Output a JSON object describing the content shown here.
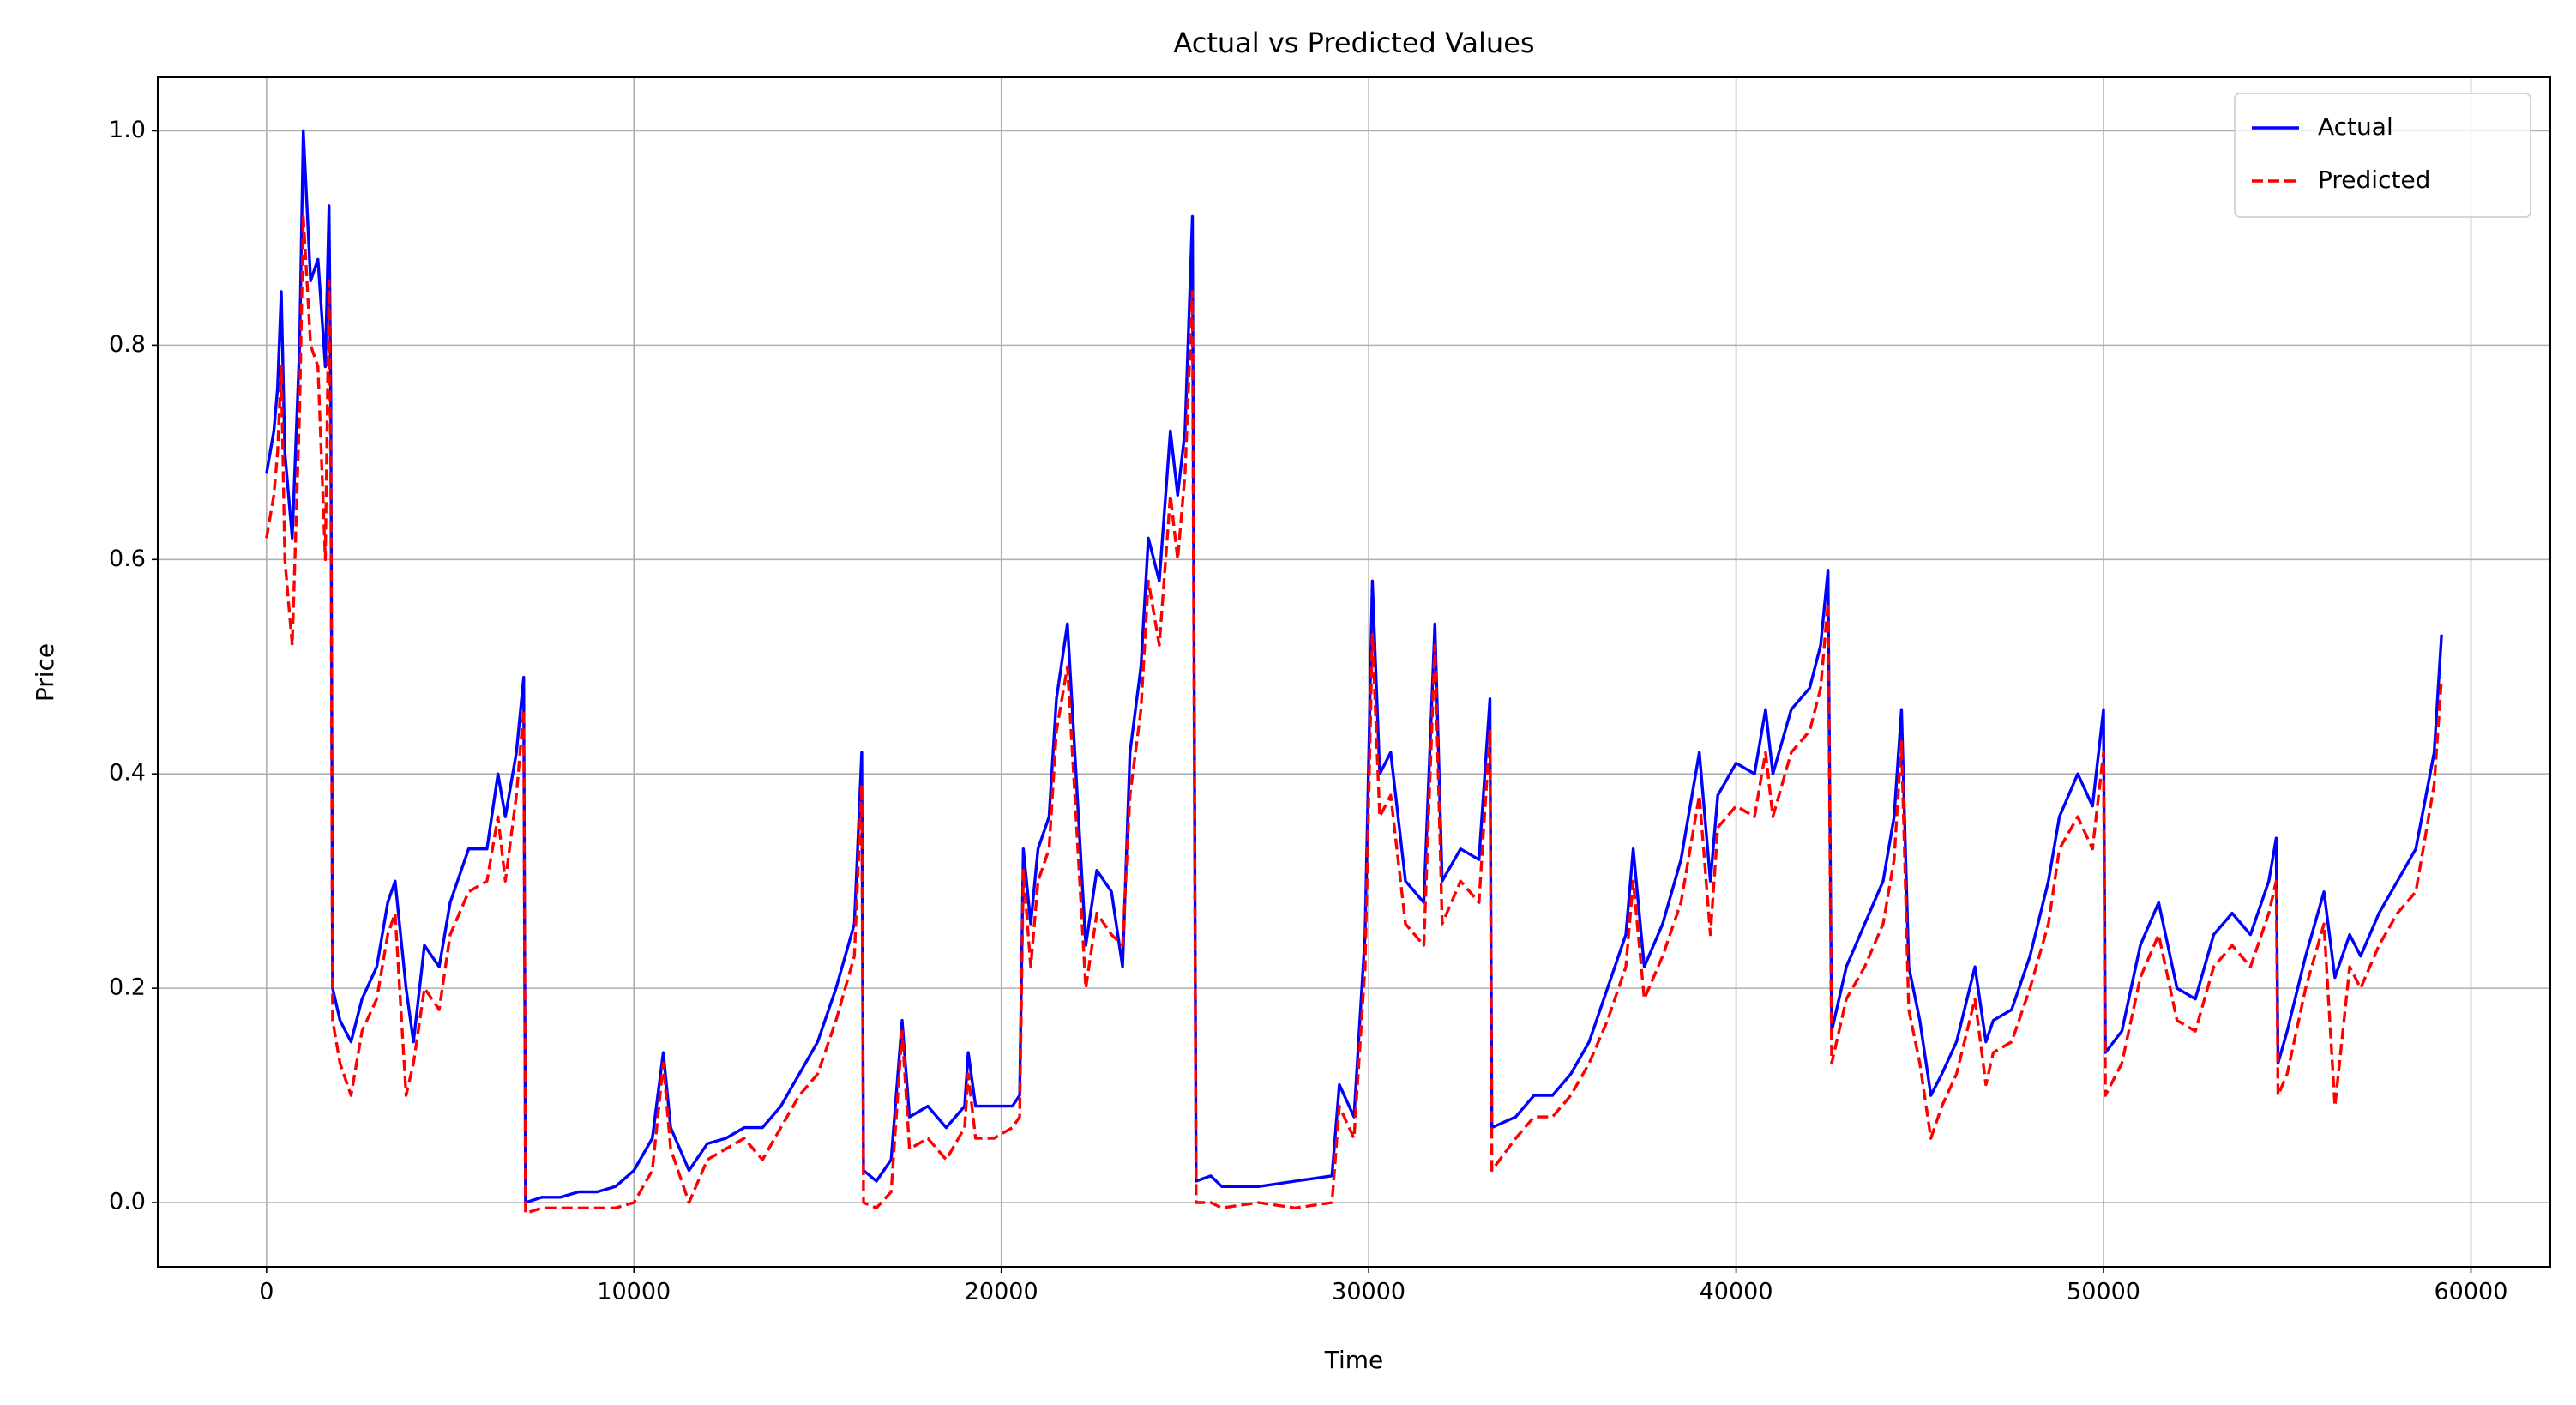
{
  "chart_data": {
    "type": "line",
    "title": "Actual vs Predicted Values",
    "x_label": "Time",
    "y_label": "Price",
    "x": [
      0,
      200,
      300,
      400,
      500,
      700,
      900,
      1000,
      1200,
      1400,
      1600,
      1700,
      1750,
      1800,
      2000,
      2300,
      2600,
      3000,
      3300,
      3500,
      3800,
      4000,
      4300,
      4700,
      5000,
      5500,
      6000,
      6300,
      6500,
      6800,
      7000,
      7050,
      7500,
      8000,
      8500,
      9000,
      9500,
      10000,
      10500,
      10800,
      11000,
      11500,
      12000,
      12500,
      13000,
      13500,
      14000,
      14500,
      15000,
      15500,
      16000,
      16200,
      16250,
      16600,
      17000,
      17300,
      17500,
      18000,
      18500,
      19000,
      19100,
      19300,
      19800,
      20300,
      20500,
      20600,
      20800,
      21000,
      21300,
      21500,
      21800,
      22000,
      22300,
      22600,
      23000,
      23300,
      23500,
      23800,
      24000,
      24300,
      24600,
      24800,
      25000,
      25200,
      25300,
      25700,
      26000,
      27000,
      28000,
      29000,
      29200,
      29600,
      29900,
      30100,
      30300,
      30600,
      31000,
      31500,
      31800,
      32000,
      32500,
      33000,
      33300,
      33350,
      34000,
      34500,
      35000,
      35500,
      36000,
      36500,
      37000,
      37200,
      37500,
      38000,
      38500,
      39000,
      39300,
      39500,
      40000,
      40500,
      40800,
      41000,
      41500,
      42000,
      42300,
      42500,
      42600,
      43000,
      43500,
      44000,
      44300,
      44500,
      44700,
      45000,
      45300,
      45600,
      46000,
      46500,
      46800,
      47000,
      47500,
      48000,
      48500,
      48800,
      49300,
      49700,
      50000,
      50050,
      50500,
      51000,
      51500,
      52000,
      52500,
      53000,
      53500,
      54000,
      54500,
      54700,
      54750,
      55000,
      55500,
      56000,
      56300,
      56700,
      57000,
      57500,
      58000,
      58500,
      59000,
      59200
    ],
    "series": [
      {
        "name": "Actual",
        "color": "#0000ff",
        "dashed": false,
        "values": [
          0.68,
          0.72,
          0.76,
          0.85,
          0.7,
          0.62,
          0.8,
          1.0,
          0.86,
          0.88,
          0.78,
          0.93,
          0.75,
          0.2,
          0.17,
          0.15,
          0.19,
          0.22,
          0.28,
          0.3,
          0.2,
          0.15,
          0.24,
          0.22,
          0.28,
          0.33,
          0.33,
          0.4,
          0.36,
          0.42,
          0.49,
          0.0,
          0.005,
          0.005,
          0.01,
          0.01,
          0.015,
          0.03,
          0.06,
          0.14,
          0.07,
          0.03,
          0.055,
          0.06,
          0.07,
          0.07,
          0.09,
          0.12,
          0.15,
          0.2,
          0.26,
          0.42,
          0.03,
          0.02,
          0.04,
          0.17,
          0.08,
          0.09,
          0.07,
          0.09,
          0.14,
          0.09,
          0.09,
          0.09,
          0.1,
          0.33,
          0.26,
          0.33,
          0.36,
          0.47,
          0.54,
          0.42,
          0.24,
          0.31,
          0.29,
          0.22,
          0.42,
          0.5,
          0.62,
          0.58,
          0.72,
          0.66,
          0.72,
          0.92,
          0.02,
          0.025,
          0.015,
          0.015,
          0.02,
          0.025,
          0.11,
          0.08,
          0.25,
          0.58,
          0.4,
          0.42,
          0.3,
          0.28,
          0.54,
          0.3,
          0.33,
          0.32,
          0.47,
          0.07,
          0.08,
          0.1,
          0.1,
          0.12,
          0.15,
          0.2,
          0.25,
          0.33,
          0.22,
          0.26,
          0.32,
          0.42,
          0.3,
          0.38,
          0.41,
          0.4,
          0.46,
          0.4,
          0.46,
          0.48,
          0.52,
          0.59,
          0.16,
          0.22,
          0.26,
          0.3,
          0.36,
          0.46,
          0.22,
          0.17,
          0.1,
          0.12,
          0.15,
          0.22,
          0.15,
          0.17,
          0.18,
          0.23,
          0.3,
          0.36,
          0.4,
          0.37,
          0.46,
          0.14,
          0.16,
          0.24,
          0.28,
          0.2,
          0.19,
          0.25,
          0.27,
          0.25,
          0.3,
          0.34,
          0.13,
          0.16,
          0.23,
          0.29,
          0.21,
          0.25,
          0.23,
          0.27,
          0.3,
          0.33,
          0.42,
          0.53
        ]
      },
      {
        "name": "Predicted",
        "color": "#ff0000",
        "dashed": true,
        "values": [
          0.62,
          0.66,
          0.7,
          0.78,
          0.6,
          0.52,
          0.74,
          0.92,
          0.8,
          0.78,
          0.6,
          0.86,
          0.68,
          0.17,
          0.13,
          0.1,
          0.16,
          0.19,
          0.25,
          0.27,
          0.1,
          0.13,
          0.2,
          0.18,
          0.25,
          0.29,
          0.3,
          0.36,
          0.3,
          0.38,
          0.46,
          -0.01,
          -0.005,
          -0.005,
          -0.005,
          -0.005,
          -0.005,
          0.0,
          0.03,
          0.13,
          0.05,
          0.0,
          0.04,
          0.05,
          0.06,
          0.04,
          0.07,
          0.1,
          0.12,
          0.17,
          0.23,
          0.39,
          0.0,
          -0.005,
          0.01,
          0.16,
          0.05,
          0.06,
          0.04,
          0.07,
          0.12,
          0.06,
          0.06,
          0.07,
          0.08,
          0.31,
          0.22,
          0.3,
          0.33,
          0.44,
          0.5,
          0.38,
          0.2,
          0.27,
          0.25,
          0.24,
          0.38,
          0.46,
          0.58,
          0.52,
          0.66,
          0.6,
          0.68,
          0.85,
          0.0,
          0.0,
          -0.005,
          0.0,
          -0.005,
          0.0,
          0.09,
          0.06,
          0.22,
          0.53,
          0.36,
          0.38,
          0.26,
          0.24,
          0.52,
          0.26,
          0.3,
          0.28,
          0.44,
          0.03,
          0.06,
          0.08,
          0.08,
          0.1,
          0.13,
          0.17,
          0.22,
          0.3,
          0.19,
          0.23,
          0.28,
          0.38,
          0.25,
          0.35,
          0.37,
          0.36,
          0.42,
          0.36,
          0.42,
          0.44,
          0.48,
          0.56,
          0.13,
          0.19,
          0.22,
          0.26,
          0.32,
          0.43,
          0.18,
          0.13,
          0.06,
          0.09,
          0.12,
          0.19,
          0.11,
          0.14,
          0.15,
          0.2,
          0.26,
          0.33,
          0.36,
          0.33,
          0.42,
          0.1,
          0.13,
          0.21,
          0.25,
          0.17,
          0.16,
          0.22,
          0.24,
          0.22,
          0.27,
          0.3,
          0.1,
          0.12,
          0.2,
          0.26,
          0.09,
          0.22,
          0.2,
          0.24,
          0.27,
          0.29,
          0.39,
          0.49
        ]
      }
    ],
    "xlim": [
      -2960,
      62160
    ],
    "ylim": [
      -0.06,
      1.05
    ],
    "xticks": [
      0,
      10000,
      20000,
      30000,
      40000,
      50000,
      60000
    ],
    "yticks": [
      {
        "value": 0,
        "label": "0.0"
      },
      {
        "value": 0.2,
        "label": "0.2"
      },
      {
        "value": 0.4,
        "label": "0.4"
      },
      {
        "value": 0.6,
        "label": "0.6"
      },
      {
        "value": 0.8,
        "label": "0.8"
      },
      {
        "value": 1,
        "label": "1.0"
      }
    ],
    "grid": true,
    "legend": "upper right"
  }
}
